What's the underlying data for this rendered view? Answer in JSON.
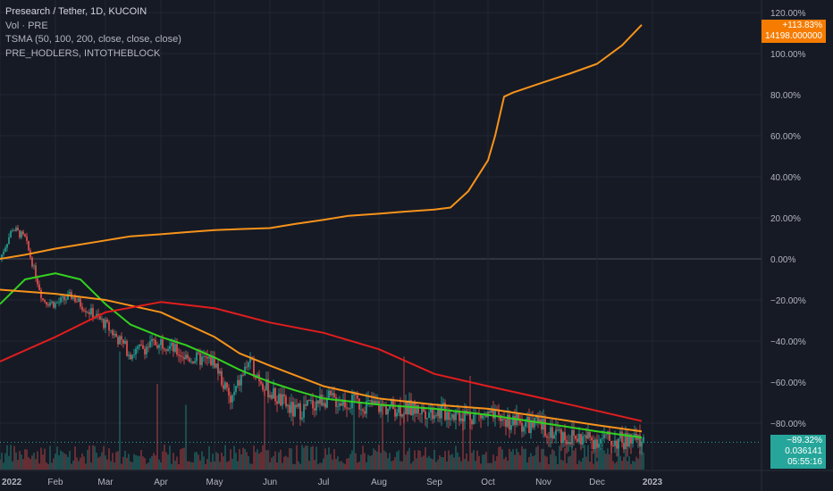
{
  "legend": {
    "title": "Presearch / Tether, 1D, KUCOIN",
    "vol": "Vol · PRE",
    "tsma": "TSMA (50, 100, 200, close, close, close)",
    "holders": "PRE_HODLERS, INTOTHEBLOCK"
  },
  "price_tags": {
    "holders_pct": "+113.83%",
    "holders_value": "14198.000000",
    "price_pct": "−89.32%",
    "price_value": "0.036141",
    "countdown": "05:55:16"
  },
  "colors": {
    "background": "#161a25",
    "grid": "#232734",
    "axis_text": "#b2b5be",
    "holders_line": "#f7931a",
    "sma50": "#33d11f",
    "sma100": "#f7931a",
    "sma200": "#e21d1d",
    "candle_up": "#26a69a",
    "candle_down": "#ef5350",
    "tag_price": "#26a69a",
    "tag_holders": "#f57c00"
  },
  "chart_data": {
    "type": "line",
    "title": "Presearch / Tether, 1D, KUCOIN",
    "y_axis": {
      "unit": "percent",
      "ticks": [
        "120.00%",
        "100.00%",
        "80.00%",
        "60.00%",
        "40.00%",
        "20.00%",
        "0.00%",
        "−20.00%",
        "−40.00%",
        "−60.00%",
        "−80.00%"
      ],
      "ylim": [
        -100,
        125
      ]
    },
    "x_axis": {
      "ticks": [
        "2022",
        "Feb",
        "Mar",
        "Apr",
        "May",
        "Jun",
        "Jul",
        "Aug",
        "Sep",
        "Oct",
        "Nov",
        "Dec",
        "2023"
      ],
      "range": [
        "2022-01-01",
        "2023-01-06"
      ]
    },
    "grid": true,
    "series": [
      {
        "name": "PRE_HODLERS, INTOTHEBLOCK",
        "points": [
          [
            "2022-01-01",
            0
          ],
          [
            "2022-01-15",
            2
          ],
          [
            "2022-02-01",
            5
          ],
          [
            "2022-02-15",
            7
          ],
          [
            "2022-03-01",
            9
          ],
          [
            "2022-03-15",
            11
          ],
          [
            "2022-04-01",
            12
          ],
          [
            "2022-04-15",
            13
          ],
          [
            "2022-05-01",
            14
          ],
          [
            "2022-05-15",
            14.5
          ],
          [
            "2022-06-01",
            15
          ],
          [
            "2022-06-15",
            17
          ],
          [
            "2022-07-01",
            19
          ],
          [
            "2022-07-15",
            21
          ],
          [
            "2022-08-01",
            22
          ],
          [
            "2022-08-15",
            23
          ],
          [
            "2022-09-01",
            24
          ],
          [
            "2022-09-10",
            25
          ],
          [
            "2022-09-20",
            33
          ],
          [
            "2022-10-01",
            48
          ],
          [
            "2022-10-05",
            60
          ],
          [
            "2022-10-10",
            79
          ],
          [
            "2022-10-15",
            81
          ],
          [
            "2022-11-01",
            86
          ],
          [
            "2022-11-15",
            90
          ],
          [
            "2022-12-01",
            95
          ],
          [
            "2022-12-15",
            104
          ],
          [
            "2022-12-26",
            114
          ]
        ]
      },
      {
        "name": "SMA 50",
        "points": [
          [
            "2022-01-01",
            -22
          ],
          [
            "2022-01-15",
            -10
          ],
          [
            "2022-02-01",
            -7
          ],
          [
            "2022-02-15",
            -10
          ],
          [
            "2022-03-01",
            -22
          ],
          [
            "2022-03-15",
            -32
          ],
          [
            "2022-04-01",
            -38
          ],
          [
            "2022-04-15",
            -42
          ],
          [
            "2022-05-01",
            -48
          ],
          [
            "2022-05-15",
            -54
          ],
          [
            "2022-06-01",
            -60
          ],
          [
            "2022-06-15",
            -64
          ],
          [
            "2022-07-01",
            -68
          ],
          [
            "2022-08-01",
            -71
          ],
          [
            "2022-09-01",
            -73
          ],
          [
            "2022-10-01",
            -76
          ],
          [
            "2022-11-01",
            -80
          ],
          [
            "2022-12-01",
            -84
          ],
          [
            "2022-12-26",
            -87
          ]
        ]
      },
      {
        "name": "SMA 100",
        "points": [
          [
            "2022-01-01",
            -15
          ],
          [
            "2022-02-01",
            -17
          ],
          [
            "2022-03-01",
            -20
          ],
          [
            "2022-04-01",
            -26
          ],
          [
            "2022-05-01",
            -38
          ],
          [
            "2022-05-15",
            -46
          ],
          [
            "2022-06-01",
            -52
          ],
          [
            "2022-07-01",
            -62
          ],
          [
            "2022-08-01",
            -68
          ],
          [
            "2022-09-01",
            -71
          ],
          [
            "2022-10-01",
            -73
          ],
          [
            "2022-11-01",
            -77
          ],
          [
            "2022-12-01",
            -81
          ],
          [
            "2022-12-26",
            -84
          ]
        ]
      },
      {
        "name": "SMA 200",
        "points": [
          [
            "2022-01-01",
            -50
          ],
          [
            "2022-02-01",
            -38
          ],
          [
            "2022-03-01",
            -26
          ],
          [
            "2022-04-01",
            -21
          ],
          [
            "2022-05-01",
            -24
          ],
          [
            "2022-06-01",
            -31
          ],
          [
            "2022-07-01",
            -36
          ],
          [
            "2022-08-01",
            -44
          ],
          [
            "2022-09-01",
            -56
          ],
          [
            "2022-10-01",
            -62
          ],
          [
            "2022-11-01",
            -68
          ],
          [
            "2022-12-01",
            -74
          ],
          [
            "2022-12-26",
            -79
          ]
        ]
      },
      {
        "name": "Presearch / Tether",
        "points": [
          [
            "2022-01-01",
            0
          ],
          [
            "2022-01-08",
            15
          ],
          [
            "2022-01-15",
            10
          ],
          [
            "2022-01-20",
            -5
          ],
          [
            "2022-01-25",
            -20
          ],
          [
            "2022-02-01",
            -22
          ],
          [
            "2022-02-10",
            -18
          ],
          [
            "2022-02-15",
            -22
          ],
          [
            "2022-03-01",
            -32
          ],
          [
            "2022-03-15",
            -46
          ],
          [
            "2022-04-01",
            -40
          ],
          [
            "2022-04-15",
            -48
          ],
          [
            "2022-05-01",
            -50
          ],
          [
            "2022-05-10",
            -70
          ],
          [
            "2022-05-20",
            -50
          ],
          [
            "2022-06-01",
            -65
          ],
          [
            "2022-06-15",
            -75
          ],
          [
            "2022-07-01",
            -68
          ],
          [
            "2022-08-01",
            -72
          ],
          [
            "2022-09-01",
            -74
          ],
          [
            "2022-10-01",
            -77
          ],
          [
            "2022-11-01",
            -82
          ],
          [
            "2022-11-15",
            -87
          ],
          [
            "2022-12-01",
            -88
          ],
          [
            "2022-12-26",
            -89.32
          ]
        ]
      }
    ]
  }
}
